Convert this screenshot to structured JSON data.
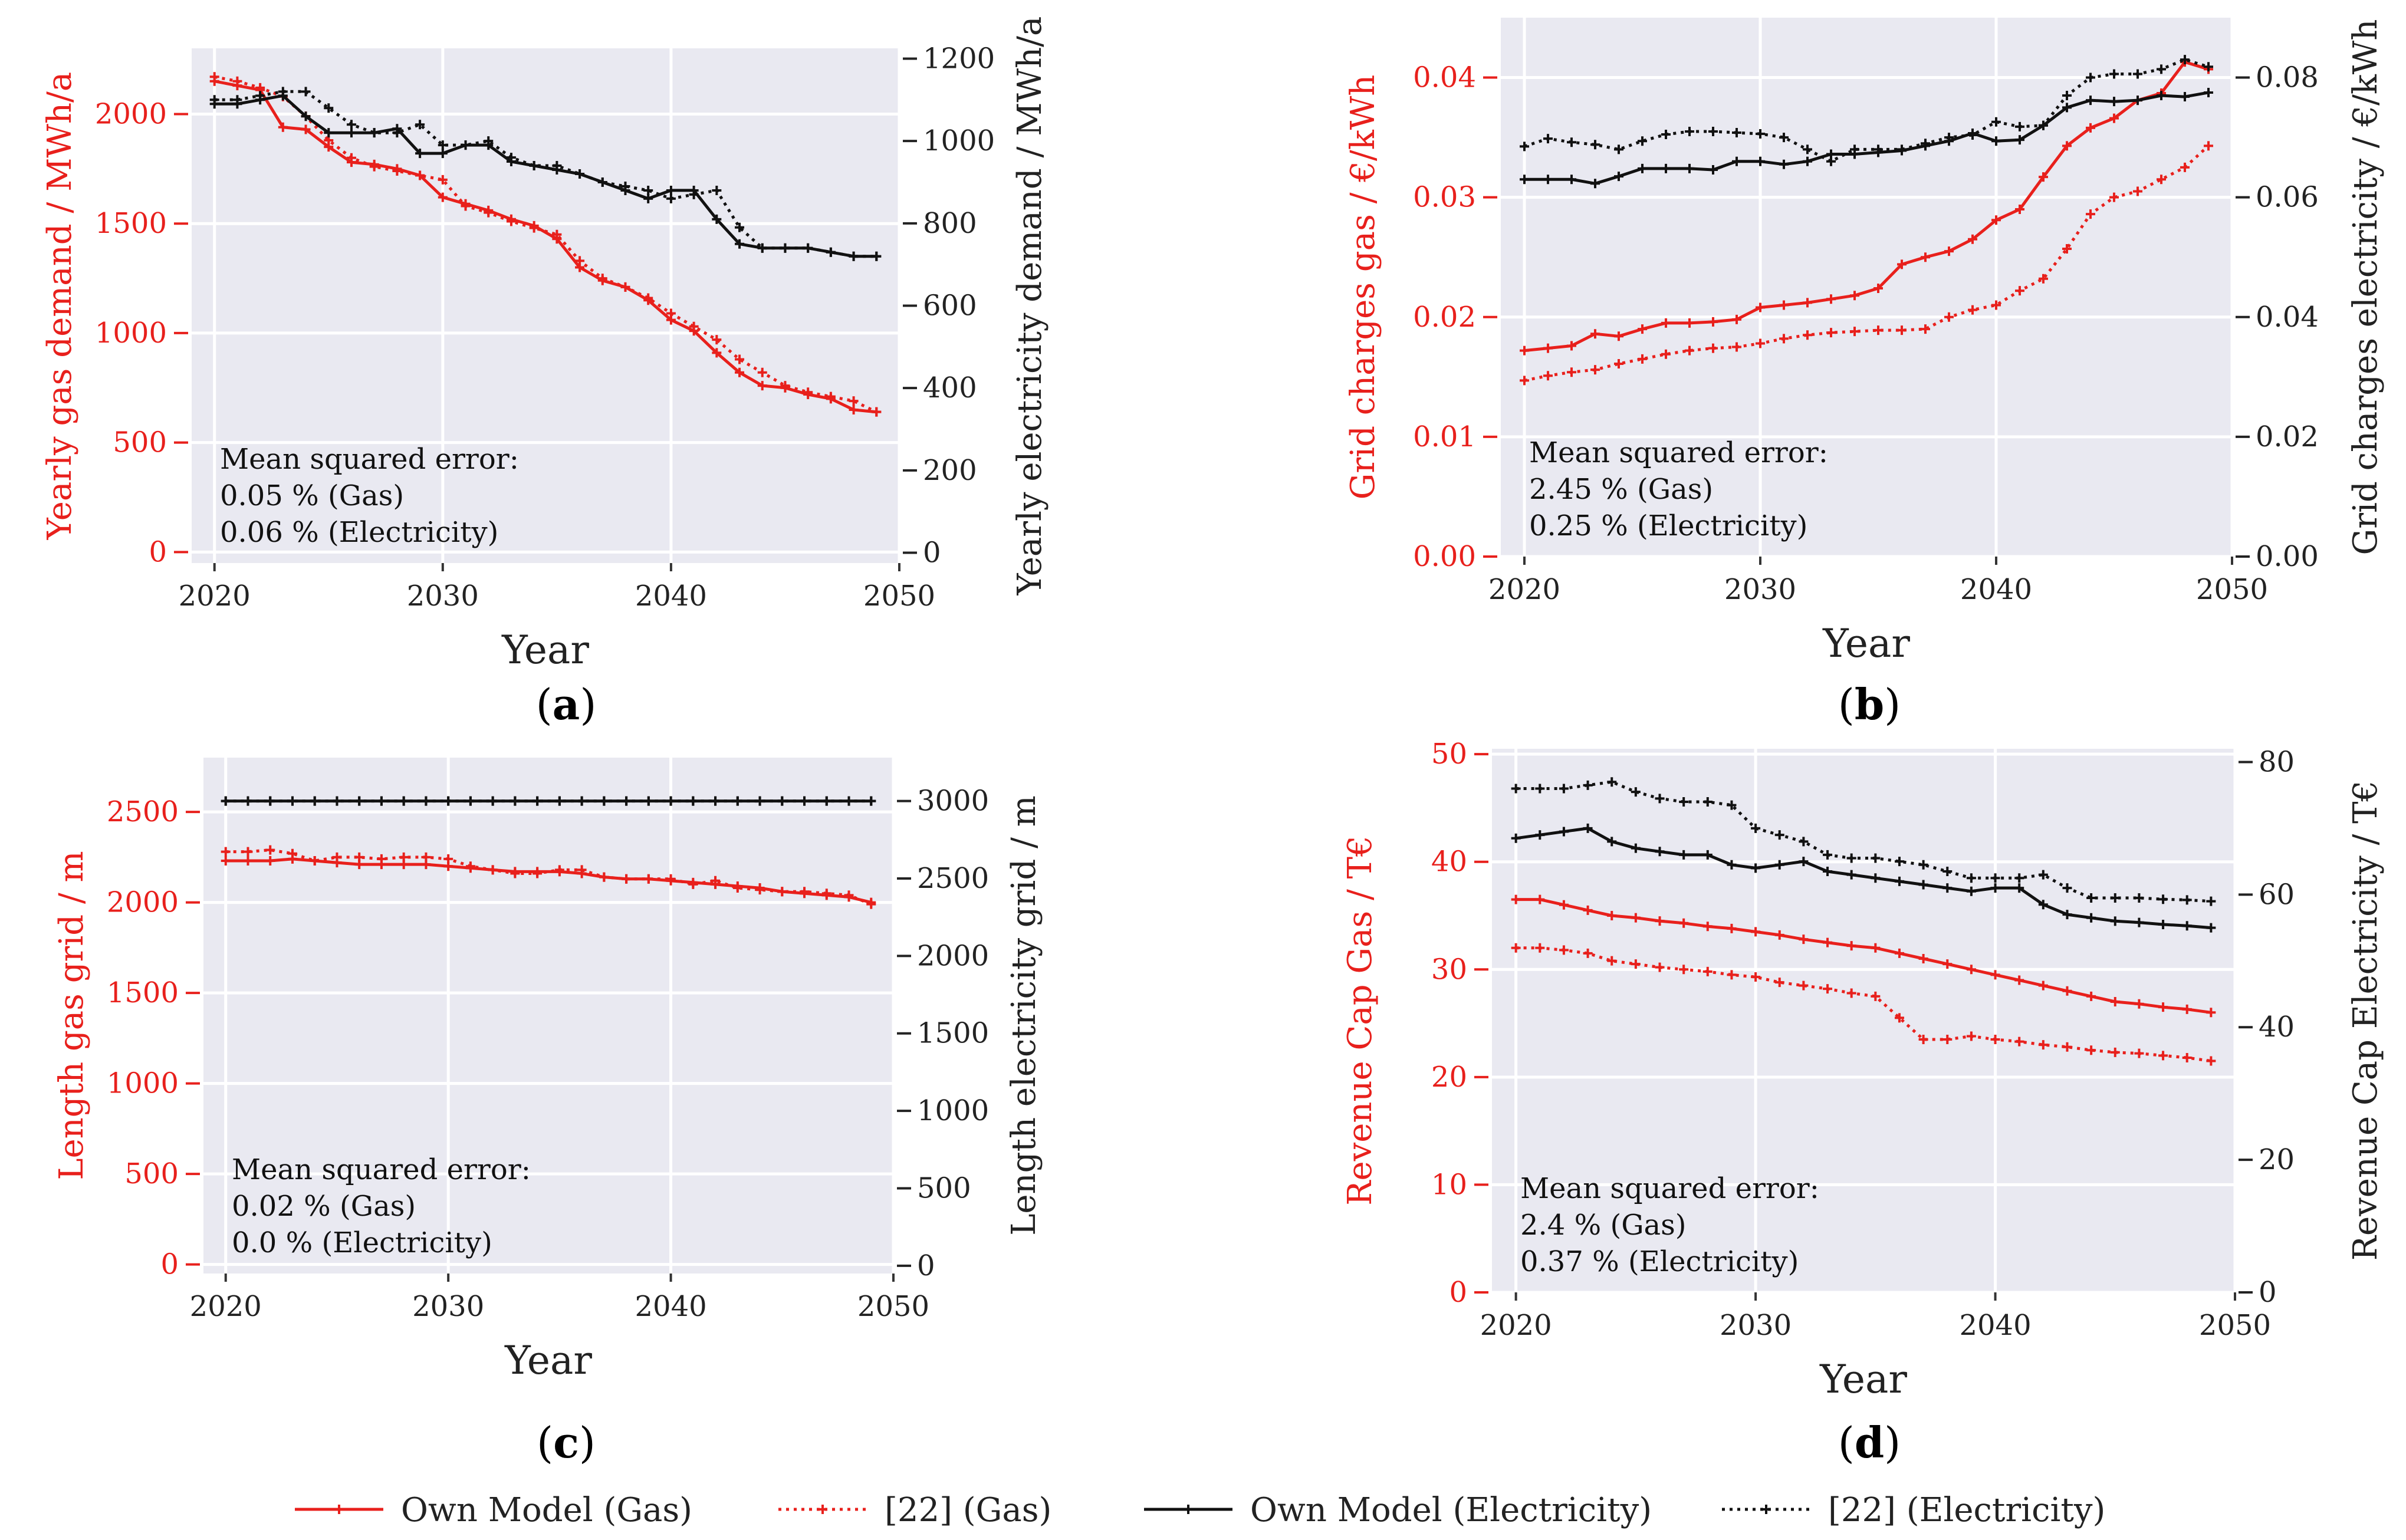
{
  "colors": {
    "gas": "#e8201c",
    "electricity": "#111111",
    "background": "#e9e9f1"
  },
  "legend": [
    {
      "label": "Own Model (Gas)",
      "color": "#e8201c",
      "dotted": false
    },
    {
      "label": "[22] (Gas)",
      "color": "#e8201c",
      "dotted": true
    },
    {
      "label": "Own Model (Electricity)",
      "color": "#111111",
      "dotted": false
    },
    {
      "label": "[22] (Electricity)",
      "color": "#111111",
      "dotted": true
    }
  ],
  "chart_data": [
    {
      "type": "line",
      "panel": "(a)",
      "panel_letter": "a",
      "xlabel": "Year",
      "xlim": [
        2019,
        2050
      ],
      "xticks": [
        2020,
        2030,
        2040,
        2050
      ],
      "ylabel_left": "Yearly gas demand / MWh/a",
      "ylim_left": [
        -50,
        2300
      ],
      "yticks_left": [
        0,
        500,
        1000,
        1500,
        2000
      ],
      "ylabel_right": "Yearly electricity demand / MWh/a",
      "ylim_right": [
        -25,
        1225
      ],
      "yticks_right": [
        0,
        200,
        400,
        600,
        800,
        1000,
        1200
      ],
      "annotation": [
        "Mean squared error:",
        "0.05 % (Gas)",
        "0.06 % (Electricity)"
      ],
      "x": [
        2020,
        2021,
        2022,
        2023,
        2024,
        2025,
        2026,
        2027,
        2028,
        2029,
        2030,
        2031,
        2032,
        2033,
        2034,
        2035,
        2036,
        2037,
        2038,
        2039,
        2040,
        2041,
        2042,
        2043,
        2044,
        2045,
        2046,
        2047,
        2048,
        2049
      ],
      "series": [
        {
          "name": "Own Model (Gas)",
          "axis": "left",
          "style": "solid",
          "color": "#e8201c",
          "values": [
            2150,
            2130,
            2110,
            1940,
            1930,
            1850,
            1780,
            1770,
            1750,
            1720,
            1620,
            1590,
            1560,
            1520,
            1490,
            1430,
            1300,
            1240,
            1210,
            1150,
            1060,
            1010,
            910,
            820,
            760,
            750,
            720,
            700,
            650,
            640
          ]
        },
        {
          "name": "[22] (Gas)",
          "axis": "left",
          "style": "dotted",
          "color": "#e8201c",
          "values": [
            2170,
            2150,
            2120,
            2080,
            1990,
            1880,
            1800,
            1760,
            1740,
            1720,
            1700,
            1580,
            1550,
            1510,
            1480,
            1450,
            1330,
            1250,
            1210,
            1160,
            1090,
            1030,
            970,
            880,
            820,
            760,
            730,
            710,
            690,
            640
          ]
        },
        {
          "name": "Own Model (Electricity)",
          "axis": "right",
          "style": "solid",
          "color": "#111111",
          "values": [
            1090,
            1090,
            1100,
            1110,
            1060,
            1020,
            1020,
            1020,
            1030,
            970,
            970,
            990,
            990,
            950,
            940,
            930,
            920,
            900,
            880,
            860,
            880,
            880,
            810,
            750,
            740,
            740,
            740,
            730,
            720,
            720
          ]
        },
        {
          "name": "[22] (Electricity)",
          "axis": "right",
          "style": "dotted",
          "color": "#111111",
          "values": [
            1100,
            1100,
            1110,
            1120,
            1120,
            1080,
            1040,
            1020,
            1020,
            1040,
            990,
            990,
            1000,
            960,
            940,
            940,
            920,
            900,
            890,
            880,
            860,
            870,
            880,
            790,
            740,
            740,
            740,
            730,
            720,
            720
          ]
        }
      ]
    },
    {
      "type": "line",
      "panel": "(b)",
      "panel_letter": "b",
      "xlabel": "Year",
      "xlim": [
        2019,
        2050
      ],
      "xticks": [
        2020,
        2030,
        2040,
        2050
      ],
      "ylabel_left": "Grid charges gas / €/kWh",
      "ylim_left": [
        0,
        0.045
      ],
      "yticks_left": [
        0.0,
        0.01,
        0.02,
        0.03,
        0.04
      ],
      "ylabel_right": "Grid charges electricity / €/kWh",
      "ylim_right": [
        0,
        0.09
      ],
      "yticks_right": [
        0.0,
        0.02,
        0.04,
        0.06,
        0.08
      ],
      "tick_decimals": 2,
      "annotation": [
        "Mean squared error:",
        "2.45 % (Gas)",
        "0.25 % (Electricity)"
      ],
      "x": [
        2020,
        2021,
        2022,
        2023,
        2024,
        2025,
        2026,
        2027,
        2028,
        2029,
        2030,
        2031,
        2032,
        2033,
        2034,
        2035,
        2036,
        2037,
        2038,
        2039,
        2040,
        2041,
        2042,
        2043,
        2044,
        2045,
        2046,
        2047,
        2048,
        2049
      ],
      "series": [
        {
          "name": "Own Model (Gas)",
          "axis": "left",
          "style": "solid",
          "color": "#e8201c",
          "values": [
            0.0172,
            0.0174,
            0.0176,
            0.0186,
            0.0184,
            0.019,
            0.0195,
            0.0195,
            0.0196,
            0.0198,
            0.0208,
            0.021,
            0.0212,
            0.0215,
            0.0218,
            0.0224,
            0.0244,
            0.025,
            0.0255,
            0.0265,
            0.0281,
            0.029,
            0.0317,
            0.0343,
            0.0358,
            0.0366,
            0.0381,
            0.0387,
            0.0413,
            0.0407
          ]
        },
        {
          "name": "[22] (Gas)",
          "axis": "left",
          "style": "dotted",
          "color": "#e8201c",
          "values": [
            0.0147,
            0.0151,
            0.0154,
            0.0156,
            0.0161,
            0.0165,
            0.0169,
            0.0172,
            0.0174,
            0.0175,
            0.0178,
            0.0182,
            0.0185,
            0.0187,
            0.0188,
            0.0189,
            0.0189,
            0.019,
            0.02,
            0.0206,
            0.021,
            0.0222,
            0.0232,
            0.0257,
            0.0286,
            0.03,
            0.0305,
            0.0315,
            0.0325,
            0.0343
          ]
        },
        {
          "name": "Own Model (Electricity)",
          "axis": "right",
          "style": "solid",
          "color": "#111111",
          "values": [
            0.063,
            0.063,
            0.063,
            0.0623,
            0.0635,
            0.0648,
            0.0648,
            0.0648,
            0.0646,
            0.066,
            0.066,
            0.0655,
            0.066,
            0.0672,
            0.0672,
            0.0675,
            0.0678,
            0.0686,
            0.0694,
            0.0707,
            0.0694,
            0.0696,
            0.072,
            0.075,
            0.0762,
            0.076,
            0.0762,
            0.077,
            0.0768,
            0.0775
          ]
        },
        {
          "name": "[22] (Electricity)",
          "axis": "right",
          "style": "dotted",
          "color": "#111111",
          "values": [
            0.0685,
            0.0698,
            0.0692,
            0.0688,
            0.068,
            0.0694,
            0.0705,
            0.071,
            0.071,
            0.0708,
            0.0706,
            0.07,
            0.068,
            0.066,
            0.068,
            0.068,
            0.068,
            0.069,
            0.07,
            0.0704,
            0.0726,
            0.0718,
            0.072,
            0.077,
            0.08,
            0.0806,
            0.0806,
            0.0814,
            0.083,
            0.0818
          ]
        }
      ]
    },
    {
      "type": "line",
      "panel": "(c)",
      "panel_letter": "c",
      "xlabel": "Year",
      "xlim": [
        2019,
        2050
      ],
      "xticks": [
        2020,
        2030,
        2040,
        2050
      ],
      "ylabel_left": "Length gas grid / m",
      "ylim_left": [
        -50,
        2800
      ],
      "yticks_left": [
        0,
        500,
        1000,
        1500,
        2000,
        2500
      ],
      "ylabel_right": "Length electricity grid / m",
      "ylim_right": [
        -50,
        3280
      ],
      "yticks_right": [
        0,
        500,
        1000,
        1500,
        2000,
        2500,
        3000
      ],
      "annotation": [
        "Mean squared error:",
        "0.02 % (Gas)",
        "0.0 % (Electricity)"
      ],
      "x": [
        2020,
        2021,
        2022,
        2023,
        2024,
        2025,
        2026,
        2027,
        2028,
        2029,
        2030,
        2031,
        2032,
        2033,
        2034,
        2035,
        2036,
        2037,
        2038,
        2039,
        2040,
        2041,
        2042,
        2043,
        2044,
        2045,
        2046,
        2047,
        2048,
        2049
      ],
      "series": [
        {
          "name": "Own Model (Gas)",
          "axis": "left",
          "style": "solid",
          "color": "#e8201c",
          "values": [
            2230,
            2230,
            2230,
            2240,
            2230,
            2220,
            2210,
            2210,
            2210,
            2210,
            2200,
            2190,
            2180,
            2170,
            2170,
            2170,
            2160,
            2140,
            2130,
            2130,
            2120,
            2110,
            2100,
            2090,
            2080,
            2060,
            2050,
            2040,
            2030,
            2000
          ]
        },
        {
          "name": "[22] (Gas)",
          "axis": "left",
          "style": "dotted",
          "color": "#e8201c",
          "values": [
            2280,
            2280,
            2290,
            2270,
            2230,
            2250,
            2250,
            2240,
            2250,
            2250,
            2240,
            2200,
            2180,
            2160,
            2160,
            2180,
            2180,
            2140,
            2130,
            2130,
            2130,
            2100,
            2120,
            2080,
            2070,
            2060,
            2060,
            2050,
            2040,
            1990
          ]
        },
        {
          "name": "Own Model (Electricity)",
          "axis": "right",
          "style": "solid",
          "color": "#111111",
          "values": [
            3000,
            3000,
            3000,
            3000,
            3000,
            3000,
            3000,
            3000,
            3000,
            3000,
            3000,
            3000,
            3000,
            3000,
            3000,
            3000,
            3000,
            3000,
            3000,
            3000,
            3000,
            3000,
            3000,
            3000,
            3000,
            3000,
            3000,
            3000,
            3000,
            3000
          ]
        },
        {
          "name": "[22] (Electricity)",
          "axis": "right",
          "style": "dotted",
          "color": "#111111",
          "values": [
            3000,
            3000,
            3000,
            3000,
            3000,
            3000,
            3000,
            3000,
            3000,
            3000,
            3000,
            3000,
            3000,
            3000,
            3000,
            3000,
            3000,
            3000,
            3000,
            3000,
            3000,
            3000,
            3000,
            3000,
            3000,
            3000,
            3000,
            3000,
            3000,
            3000
          ]
        }
      ]
    },
    {
      "type": "line",
      "panel": "(d)",
      "panel_letter": "d",
      "xlabel": "Year",
      "xlim": [
        2019,
        2050
      ],
      "xticks": [
        2020,
        2030,
        2040,
        2050
      ],
      "ylabel_left": "Revenue Cap Gas / T€",
      "ylim_left": [
        0,
        50.5
      ],
      "yticks_left": [
        0,
        10,
        20,
        30,
        40,
        50
      ],
      "ylabel_right": "Revenue Cap Electricity / T€",
      "ylim_right": [
        0,
        82
      ],
      "yticks_right": [
        0,
        20,
        40,
        60,
        80
      ],
      "annotation": [
        "Mean squared error:",
        "2.4 % (Gas)",
        "0.37 % (Electricity)"
      ],
      "x": [
        2020,
        2021,
        2022,
        2023,
        2024,
        2025,
        2026,
        2027,
        2028,
        2029,
        2030,
        2031,
        2032,
        2033,
        2034,
        2035,
        2036,
        2037,
        2038,
        2039,
        2040,
        2041,
        2042,
        2043,
        2044,
        2045,
        2046,
        2047,
        2048,
        2049
      ],
      "series": [
        {
          "name": "Own Model (Gas)",
          "axis": "left",
          "style": "solid",
          "color": "#e8201c",
          "values": [
            36.5,
            36.5,
            36.0,
            35.5,
            35.0,
            34.8,
            34.5,
            34.3,
            34.0,
            33.8,
            33.5,
            33.2,
            32.8,
            32.5,
            32.2,
            32.0,
            31.5,
            31.0,
            30.5,
            30.0,
            29.5,
            29.0,
            28.5,
            28.0,
            27.5,
            27.0,
            26.8,
            26.5,
            26.3,
            26.0
          ]
        },
        {
          "name": "[22] (Gas)",
          "axis": "left",
          "style": "dotted",
          "color": "#e8201c",
          "values": [
            32.0,
            32.0,
            31.8,
            31.5,
            30.8,
            30.5,
            30.2,
            30.0,
            29.8,
            29.5,
            29.3,
            28.8,
            28.5,
            28.2,
            27.8,
            27.5,
            25.5,
            23.5,
            23.5,
            23.8,
            23.5,
            23.3,
            23.0,
            22.8,
            22.5,
            22.3,
            22.2,
            22.0,
            21.8,
            21.5
          ]
        },
        {
          "name": "Own Model (Electricity)",
          "axis": "right",
          "style": "solid",
          "color": "#111111",
          "values": [
            68.5,
            69.0,
            69.5,
            70.0,
            68.0,
            67.0,
            66.5,
            66.0,
            66.0,
            64.5,
            64.0,
            64.5,
            65.0,
            63.5,
            63.0,
            62.5,
            62.0,
            61.5,
            61.0,
            60.5,
            61.0,
            61.0,
            58.5,
            57.0,
            56.5,
            56.0,
            55.8,
            55.5,
            55.3,
            55.0
          ]
        },
        {
          "name": "[22] (Electricity)",
          "axis": "right",
          "style": "dotted",
          "color": "#111111",
          "values": [
            76.0,
            76.0,
            76.0,
            76.5,
            77.0,
            75.5,
            74.5,
            74.0,
            74.0,
            73.5,
            70.0,
            69.0,
            68.0,
            66.0,
            65.5,
            65.5,
            65.0,
            64.5,
            63.5,
            62.5,
            62.5,
            62.5,
            63.0,
            61.0,
            59.5,
            59.5,
            59.5,
            59.3,
            59.2,
            59.0
          ]
        }
      ]
    }
  ]
}
